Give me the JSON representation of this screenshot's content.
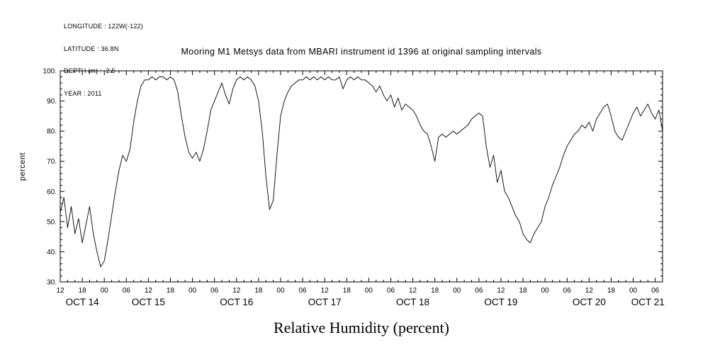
{
  "meta": {
    "longitude": "LONGITUDE : 122W(-122)",
    "latitude": "LATITUDE : 36.8N",
    "depth": "DEPTH (m) : -2.5",
    "year": "YEAR : 2011"
  },
  "chart_data": {
    "type": "line",
    "title": "Mooring M1 Metsys data from MBARI instrument id 1396 at original sampling intervals",
    "ylabel": "percent",
    "xlabel": "Relative Humidity (percent)",
    "ylim": [
      30,
      100
    ],
    "xlim": [
      0,
      164
    ],
    "grid": false,
    "legend": "none",
    "line_color": "#000000",
    "background": "#ffffff",
    "yticks": [
      30,
      40,
      50,
      60,
      70,
      80,
      90,
      100
    ],
    "ytick_labels": [
      "30.",
      "40.",
      "50.",
      "60.",
      "70.",
      "80.",
      "90.",
      "100."
    ],
    "minor_y_step": 2,
    "xticks_hours": [
      0,
      6,
      12,
      18,
      24,
      30,
      36,
      42,
      48,
      54,
      60,
      66,
      72,
      78,
      84,
      90,
      96,
      102,
      108,
      114,
      120,
      126,
      132,
      138,
      144,
      150,
      156,
      162
    ],
    "xtick_labels": [
      "12",
      "18",
      "00",
      "06",
      "12",
      "18",
      "00",
      "06",
      "12",
      "18",
      "00",
      "06",
      "12",
      "18",
      "00",
      "06",
      "12",
      "18",
      "00",
      "06",
      "12",
      "18",
      "00",
      "06",
      "12",
      "18",
      "00",
      "06"
    ],
    "minor_x_step_hours": 2,
    "day_labels": [
      {
        "label": "OCT 14",
        "center_hour": 6
      },
      {
        "label": "OCT 15",
        "center_hour": 24
      },
      {
        "label": "OCT 16",
        "center_hour": 48
      },
      {
        "label": "OCT 17",
        "center_hour": 72
      },
      {
        "label": "OCT 18",
        "center_hour": 96
      },
      {
        "label": "OCT 19",
        "center_hour": 120
      },
      {
        "label": "OCT 20",
        "center_hour": 144
      },
      {
        "label": "OCT 21",
        "center_hour": 160
      }
    ],
    "x_unit": "hours since 2011-10-14 12:00",
    "x": [
      0,
      1,
      2,
      3,
      4,
      5,
      6,
      7,
      8,
      9,
      10,
      11,
      12,
      13,
      14,
      15,
      16,
      17,
      18,
      19,
      20,
      21,
      22,
      23,
      24,
      25,
      26,
      27,
      28,
      29,
      30,
      31,
      32,
      33,
      34,
      35,
      36,
      37,
      38,
      39,
      40,
      41,
      42,
      43,
      44,
      45,
      46,
      47,
      48,
      49,
      50,
      51,
      52,
      53,
      54,
      55,
      56,
      57,
      58,
      59,
      60,
      61,
      62,
      63,
      64,
      65,
      66,
      67,
      68,
      69,
      70,
      71,
      72,
      73,
      74,
      75,
      76,
      77,
      78,
      79,
      80,
      81,
      82,
      83,
      84,
      85,
      86,
      87,
      88,
      89,
      90,
      91,
      92,
      93,
      94,
      95,
      96,
      97,
      98,
      99,
      100,
      101,
      102,
      103,
      104,
      105,
      106,
      107,
      108,
      109,
      110,
      111,
      112,
      113,
      114,
      115,
      116,
      117,
      118,
      119,
      120,
      121,
      122,
      123,
      124,
      125,
      126,
      127,
      128,
      129,
      130,
      131,
      132,
      133,
      134,
      135,
      136,
      137,
      138,
      139,
      140,
      141,
      142,
      143,
      144,
      145,
      146,
      147,
      148,
      149,
      150,
      151,
      152,
      153,
      154,
      155,
      156,
      157,
      158,
      159,
      160,
      161,
      162,
      163,
      164
    ],
    "values": [
      53,
      58,
      48,
      55,
      46,
      51,
      43,
      49,
      55,
      46,
      40,
      35,
      37,
      44,
      52,
      60,
      67,
      72,
      70,
      74,
      83,
      90,
      95,
      97,
      97,
      98,
      97,
      98,
      98,
      97,
      98,
      97,
      93,
      85,
      78,
      73,
      71,
      73,
      70,
      74,
      80,
      87,
      90,
      93,
      96,
      92,
      89,
      94,
      97,
      98,
      97,
      98,
      97,
      95,
      90,
      80,
      65,
      54,
      57,
      72,
      85,
      90,
      93,
      95,
      96,
      97,
      97,
      98,
      97,
      98,
      97,
      98,
      97,
      98,
      97,
      97,
      98,
      94,
      97,
      98,
      97,
      98,
      97,
      97,
      96,
      95,
      93,
      95,
      92,
      90,
      92,
      88,
      91,
      87,
      89,
      88,
      87,
      85,
      82,
      80,
      79,
      75,
      70,
      78,
      79,
      78,
      79,
      80,
      79,
      80,
      81,
      82,
      84,
      85,
      86,
      85,
      75,
      68,
      72,
      63,
      67,
      60,
      58,
      55,
      52,
      50,
      46,
      44,
      43,
      46,
      48,
      50,
      55,
      58,
      62,
      65,
      68,
      72,
      75,
      77,
      79,
      80,
      82,
      81,
      83,
      80,
      84,
      86,
      88,
      89,
      85,
      80,
      78,
      77,
      80,
      83,
      86,
      88,
      85,
      87,
      89,
      86,
      84,
      87,
      80
    ]
  }
}
